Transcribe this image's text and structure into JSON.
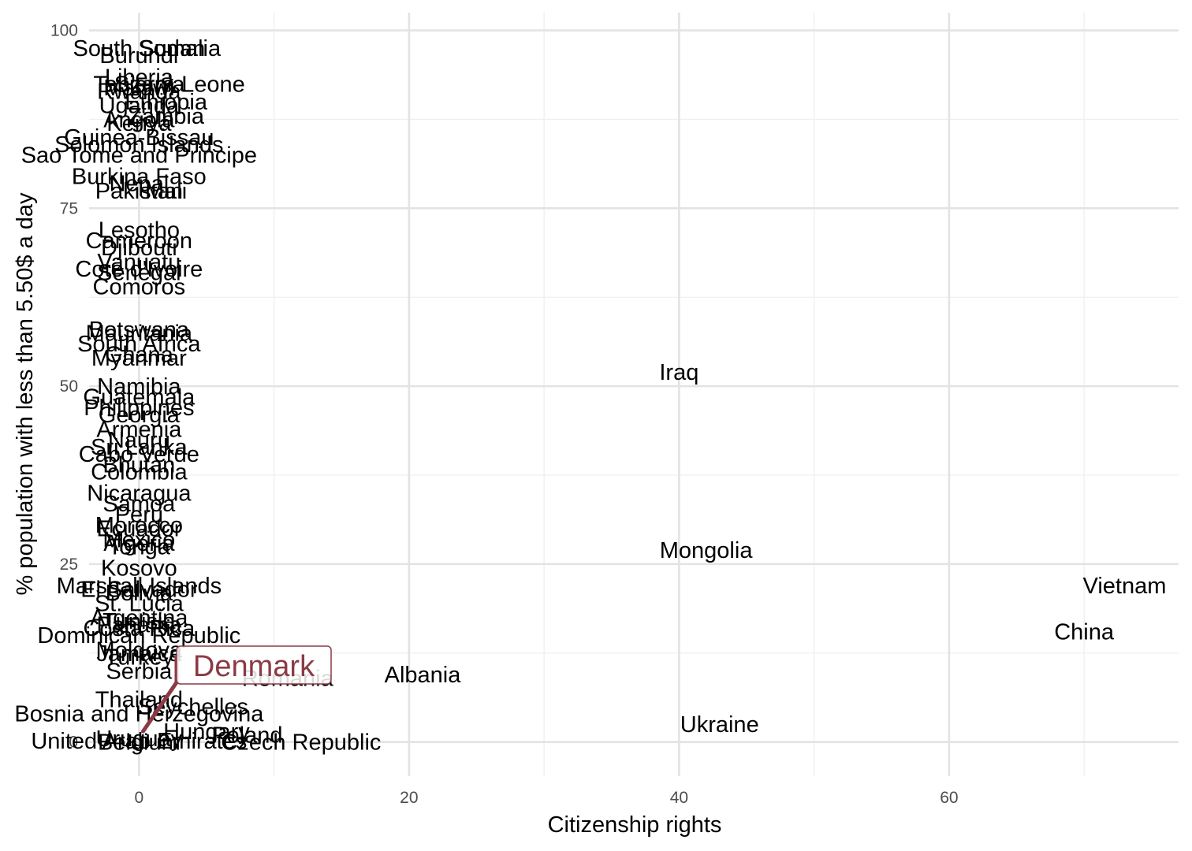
{
  "chart_data": {
    "type": "scatter",
    "title": "",
    "xlabel": "Citizenship rights",
    "ylabel": "% population with less than 5.50$ a day",
    "xlim": [
      -3.7,
      77
    ],
    "ylim": [
      -4.8,
      102.5
    ],
    "x_ticks": [
      0,
      20,
      40,
      60
    ],
    "y_ticks": [
      0,
      25,
      50,
      75,
      100
    ],
    "grid": true,
    "highlight": {
      "label": "Denmark",
      "x": 0.3,
      "y": 1.5,
      "color": "#8b3a46"
    },
    "points": [
      {
        "label": "Somalia",
        "x": 3,
        "y": 97.5
      },
      {
        "label": "South Sudan",
        "x": 0,
        "y": 97.5
      },
      {
        "label": "Burundi",
        "x": 0,
        "y": 96.5
      },
      {
        "label": "Liberia",
        "x": 0,
        "y": 93.5
      },
      {
        "label": "Sierra Leone",
        "x": 3,
        "y": 92.5
      },
      {
        "label": "Tanzania",
        "x": 0,
        "y": 92.5
      },
      {
        "label": "Malawi",
        "x": 0,
        "y": 92
      },
      {
        "label": "Rwanda",
        "x": 0,
        "y": 91.5
      },
      {
        "label": "Ethiopia",
        "x": 2,
        "y": 90
      },
      {
        "label": "Uganda",
        "x": 0,
        "y": 89.5
      },
      {
        "label": "Zambia",
        "x": 2,
        "y": 88
      },
      {
        "label": "Angola",
        "x": 0,
        "y": 87.5
      },
      {
        "label": "Kenya",
        "x": 0,
        "y": 87
      },
      {
        "label": "Guinea-Bissau",
        "x": 0,
        "y": 85
      },
      {
        "label": "Solomon Islands",
        "x": 0,
        "y": 84
      },
      {
        "label": "Sao Tome and Principe",
        "x": 0,
        "y": 82.5
      },
      {
        "label": "Burkina Faso",
        "x": 0,
        "y": 79.5
      },
      {
        "label": "Nepal",
        "x": 0,
        "y": 78.5
      },
      {
        "label": "Mali",
        "x": 2,
        "y": 77.5
      },
      {
        "label": "Pakistan",
        "x": 0,
        "y": 77.5
      },
      {
        "label": "Lesotho",
        "x": 0,
        "y": 72
      },
      {
        "label": "Cameroon",
        "x": 0,
        "y": 70.5
      },
      {
        "label": "Djibouti",
        "x": 0,
        "y": 69.5
      },
      {
        "label": "Vanuatu",
        "x": 0,
        "y": 67.5
      },
      {
        "label": "Cote d'Ivoire",
        "x": 0,
        "y": 66.5
      },
      {
        "label": "Senegal",
        "x": 0,
        "y": 66
      },
      {
        "label": "Comoros",
        "x": 0,
        "y": 64
      },
      {
        "label": "Botswana",
        "x": 0,
        "y": 58
      },
      {
        "label": "Mauritania",
        "x": 0,
        "y": 57.5
      },
      {
        "label": "South Africa",
        "x": 0,
        "y": 56
      },
      {
        "label": "Ghana",
        "x": 0,
        "y": 54.5
      },
      {
        "label": "Myanmar",
        "x": 0,
        "y": 54
      },
      {
        "label": "Iraq",
        "x": 40,
        "y": 52
      },
      {
        "label": "Namibia",
        "x": 0,
        "y": 50
      },
      {
        "label": "Guatemala",
        "x": 0,
        "y": 48.5
      },
      {
        "label": "Philippines",
        "x": 0,
        "y": 47
      },
      {
        "label": "Georgia",
        "x": 0,
        "y": 46
      },
      {
        "label": "Armenia",
        "x": 0,
        "y": 44
      },
      {
        "label": "Nauru",
        "x": 0,
        "y": 42.5
      },
      {
        "label": "Sri Lanka",
        "x": 0,
        "y": 41.5
      },
      {
        "label": "Cabo Verde",
        "x": 0,
        "y": 40.5
      },
      {
        "label": "Bhutan",
        "x": 0,
        "y": 39
      },
      {
        "label": "Colombia",
        "x": 0,
        "y": 38
      },
      {
        "label": "Nicaragua",
        "x": 0,
        "y": 35
      },
      {
        "label": "Samoa",
        "x": 0,
        "y": 33.5
      },
      {
        "label": "Peru",
        "x": 0,
        "y": 32
      },
      {
        "label": "Morocco",
        "x": 0,
        "y": 30.5
      },
      {
        "label": "Ecuador",
        "x": 0,
        "y": 30
      },
      {
        "label": "Mexico",
        "x": 0,
        "y": 28.5
      },
      {
        "label": "Algeria",
        "x": 0,
        "y": 28
      },
      {
        "label": "Tonga",
        "x": 0,
        "y": 27.5
      },
      {
        "label": "Mongolia",
        "x": 42,
        "y": 27
      },
      {
        "label": "Kosovo",
        "x": 0,
        "y": 24.5
      },
      {
        "label": "Marshall Islands",
        "x": 0,
        "y": 22
      },
      {
        "label": "El Salvador",
        "x": 0,
        "y": 21.5
      },
      {
        "label": "Bolivia",
        "x": 0,
        "y": 21
      },
      {
        "label": "Vietnam",
        "x": 73,
        "y": 22
      },
      {
        "label": "St. Lucia",
        "x": 0,
        "y": 19.5
      },
      {
        "label": "Argentina",
        "x": 0,
        "y": 17.5
      },
      {
        "label": "Tunisia",
        "x": 0,
        "y": 17
      },
      {
        "label": "Panama",
        "x": 0,
        "y": 16.5
      },
      {
        "label": "Costa Rica",
        "x": 0,
        "y": 16
      },
      {
        "label": "Dominican Republic",
        "x": 0,
        "y": 15
      },
      {
        "label": "China",
        "x": 70,
        "y": 15.5
      },
      {
        "label": "Moldova",
        "x": 0,
        "y": 13
      },
      {
        "label": "Jamaica",
        "x": 0,
        "y": 12.5
      },
      {
        "label": "Turkey",
        "x": 0,
        "y": 12
      },
      {
        "label": "Serbia",
        "x": 0,
        "y": 10
      },
      {
        "label": "Romania",
        "x": 11,
        "y": 9
      },
      {
        "label": "Albania",
        "x": 21,
        "y": 9.5
      },
      {
        "label": "Thailand",
        "x": 0,
        "y": 6
      },
      {
        "label": "Seychelles",
        "x": 4,
        "y": 5
      },
      {
        "label": "Bosnia and Herzegovina",
        "x": 0,
        "y": 4
      },
      {
        "label": "Ukraine",
        "x": 43,
        "y": 2.5
      },
      {
        "label": "Hungary",
        "x": 5,
        "y": 1.5
      },
      {
        "label": "Poland",
        "x": 8,
        "y": 1
      },
      {
        "label": "Czech Republic",
        "x": 12,
        "y": 0
      },
      {
        "label": "United Arab Emirates",
        "x": 0,
        "y": 0.2
      },
      {
        "label": "Uruguay",
        "x": 0,
        "y": 0.5
      },
      {
        "label": "Belgium",
        "x": 0,
        "y": 0
      }
    ]
  }
}
